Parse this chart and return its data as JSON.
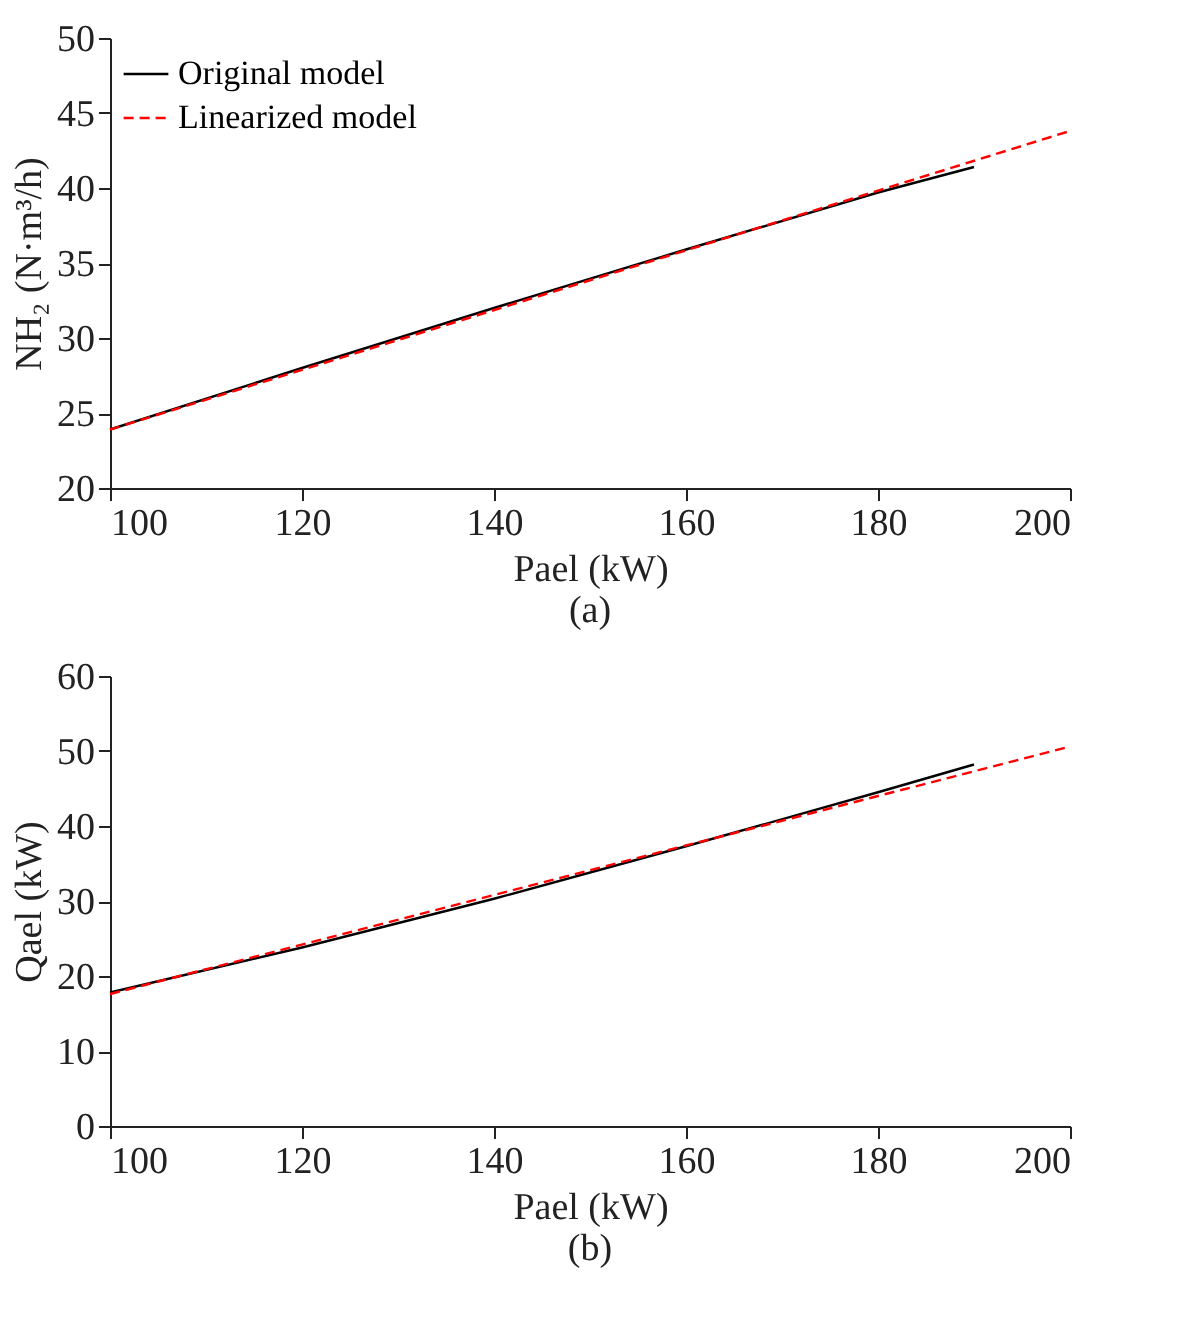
{
  "chart_data": [
    {
      "type": "line",
      "title": "(a)",
      "xlabel": "Pael (kW)",
      "ylabel": "NH₂ (N·m³/h)",
      "xlim": [
        100,
        200
      ],
      "xticks": [
        100,
        120,
        140,
        160,
        180,
        200
      ],
      "ylim": [
        20,
        50
      ],
      "yticks": [
        20,
        25,
        30,
        35,
        40,
        45,
        50
      ],
      "grid": false,
      "legend": "top left",
      "marker": "none",
      "series": [
        {
          "name": "Original model",
          "color": "#000000",
          "line_style": "solid",
          "x": [
            100,
            120,
            140,
            160,
            180,
            190
          ],
          "values": [
            23.9,
            28.0,
            32.0,
            35.9,
            39.7,
            41.4
          ]
        },
        {
          "name": "Linearized model",
          "color": "#ff0000",
          "line_style": "dashed",
          "x": [
            100,
            200
          ],
          "values": [
            23.9,
            43.8
          ]
        }
      ]
    },
    {
      "type": "line",
      "title": "(b)",
      "xlabel": "Pael (kW)",
      "ylabel": "Qael (kW)",
      "xlim": [
        100,
        200
      ],
      "xticks": [
        100,
        120,
        140,
        160,
        180,
        200
      ],
      "ylim": [
        0,
        60
      ],
      "yticks": [
        0,
        10,
        20,
        30,
        40,
        50,
        60
      ],
      "grid": false,
      "legend": "top left",
      "marker": "none",
      "series": [
        {
          "name": "Original model",
          "color": "#000000",
          "line_style": "solid",
          "x": [
            100,
            120,
            140,
            160,
            180,
            190
          ],
          "values": [
            17.8,
            23.8,
            30.3,
            37.3,
            44.5,
            48.2
          ]
        },
        {
          "name": "Linearized model",
          "color": "#ff0000",
          "line_style": "dashed",
          "x": [
            100,
            200
          ],
          "values": [
            17.6,
            50.6
          ]
        }
      ]
    }
  ]
}
